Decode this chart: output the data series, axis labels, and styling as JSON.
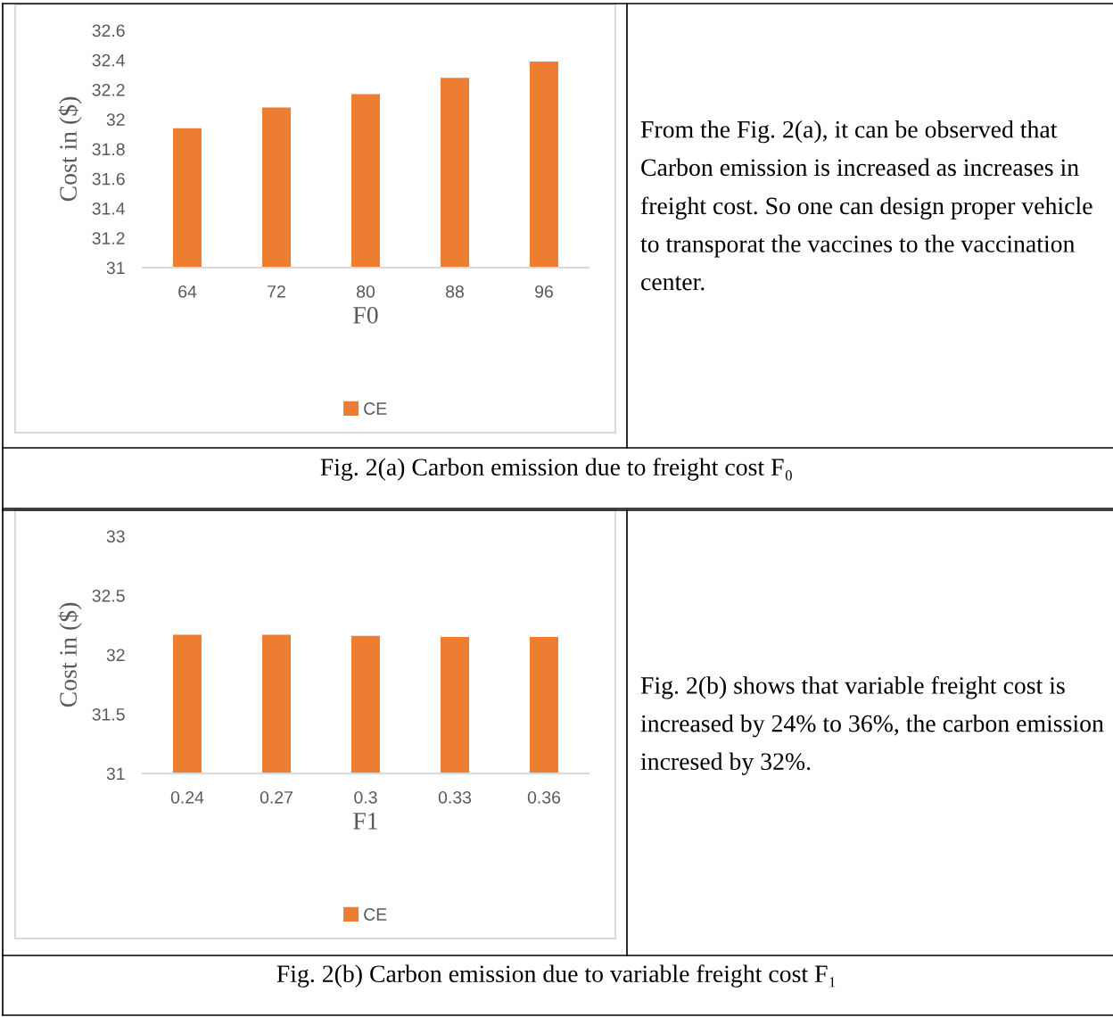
{
  "chart_data": [
    {
      "type": "bar",
      "title": "Fig. 2(a) Carbon emission due to freight cost F₀",
      "xlabel": "F0",
      "ylabel": "Cost in ($)",
      "categories": [
        "64",
        "72",
        "80",
        "88",
        "96"
      ],
      "series": [
        {
          "name": "CE",
          "color": "#ed7d31",
          "values": [
            31.94,
            32.08,
            32.17,
            32.28,
            32.39
          ]
        }
      ],
      "ylim": [
        31,
        32.6
      ],
      "yticks": [
        31,
        31.2,
        31.4,
        31.6,
        31.8,
        32,
        32.2,
        32.4,
        32.6
      ],
      "grid": false,
      "legend": "bottom"
    },
    {
      "type": "other",
      "annotations": [
        "From the Fig. 2(a), it can be observed that Carbon emission is increased as increases in freight cost. So one can design proper vehicle to transporat the vaccines to the vaccination center."
      ]
    },
    {
      "type": "bar",
      "title": "Fig. 2(b) Carbon emission due to variable freight cost F₁",
      "xlabel": "F1",
      "ylabel": "Cost in ($)",
      "categories": [
        "0.24",
        "0.27",
        "0.3",
        "0.33",
        "0.36"
      ],
      "series": [
        {
          "name": "CE",
          "color": "#ed7d31",
          "values": [
            32.17,
            32.17,
            32.16,
            32.15,
            32.15
          ]
        }
      ],
      "ylim": [
        31,
        33
      ],
      "yticks": [
        31,
        31.5,
        32,
        32.5,
        33
      ],
      "grid": false,
      "legend": "bottom"
    },
    {
      "type": "other",
      "annotations": [
        "Fig. 2(b) shows that variable freight cost is increased by 24% to 36%, the carbon emission incresed by 32%."
      ]
    }
  ]
}
